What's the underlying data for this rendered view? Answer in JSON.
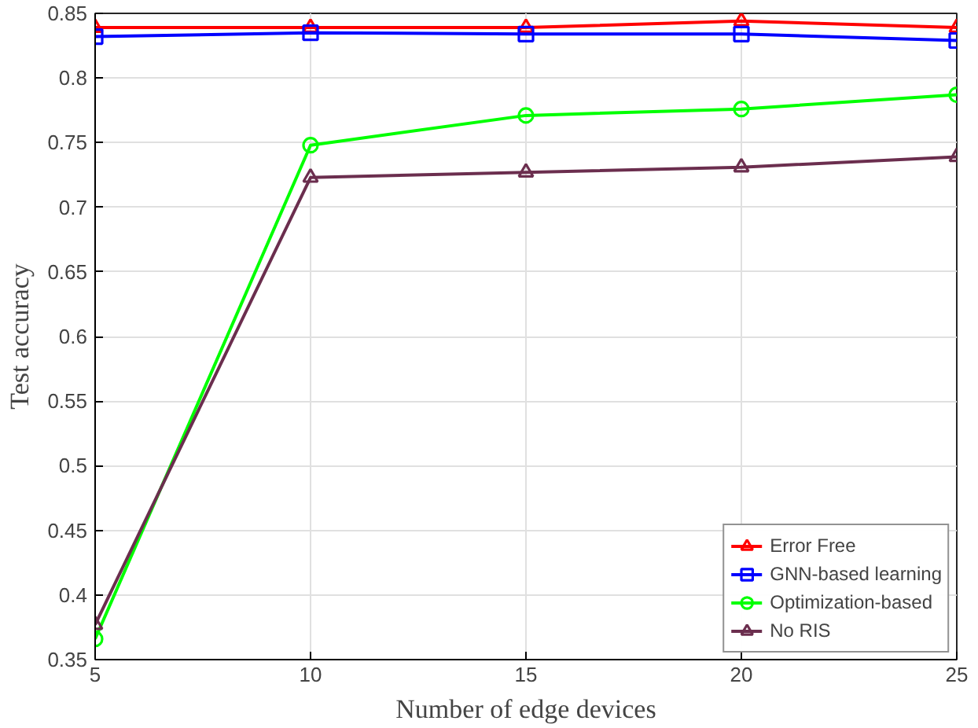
{
  "chart_data": {
    "type": "line",
    "xlabel": "Number of edge devices",
    "ylabel": "Test accuracy",
    "x": [
      5,
      10,
      15,
      20,
      25
    ],
    "series": [
      {
        "name": "Error Free",
        "color": "#ff0000",
        "marker": "triangle",
        "values": [
          0.839,
          0.839,
          0.839,
          0.844,
          0.839
        ]
      },
      {
        "name": "GNN-based learning",
        "color": "#0000ff",
        "marker": "square",
        "values": [
          0.832,
          0.835,
          0.834,
          0.834,
          0.829
        ]
      },
      {
        "name": "Optimization-based",
        "color": "#00ff00",
        "marker": "circle",
        "values": [
          0.366,
          0.748,
          0.771,
          0.776,
          0.787
        ]
      },
      {
        "name": "No RIS",
        "color": "#6b2e4e",
        "marker": "triangle",
        "values": [
          0.377,
          0.723,
          0.727,
          0.731,
          0.739
        ]
      }
    ],
    "xlim": [
      5,
      25
    ],
    "xticks": [
      5,
      10,
      15,
      20,
      25
    ],
    "ylim": [
      0.35,
      0.85
    ],
    "yticks": [
      0.35,
      0.4,
      0.45,
      0.5,
      0.55,
      0.6,
      0.65,
      0.7,
      0.75,
      0.8,
      0.85
    ],
    "grid": true,
    "legend": "bottom right",
    "line_style": "solid"
  }
}
